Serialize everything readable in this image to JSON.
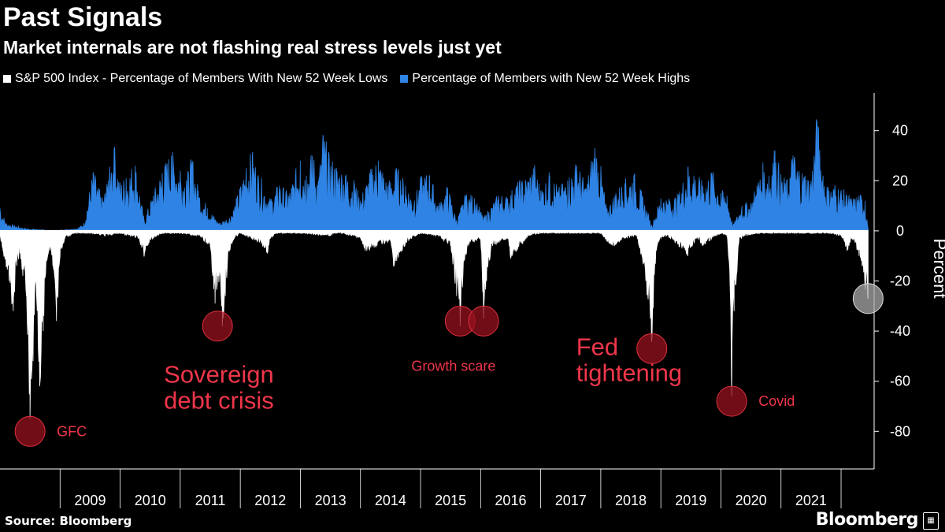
{
  "header": {
    "title": "Past Signals",
    "subtitle": "Market internals are not flashing real stress levels just yet"
  },
  "legend": [
    {
      "label": "S&P 500 Index - Percentage of Members With New 52 Week Lows",
      "color": "#ffffff"
    },
    {
      "label": "Percentage of Members with New 52 Week Highs",
      "color": "#2f83e4"
    }
  ],
  "footer": {
    "source": "Source: Bloomberg",
    "brand": "Bloomberg"
  },
  "chart_data": {
    "type": "area",
    "x_range": [
      "2008-01",
      "2022-06"
    ],
    "ylim": [
      -95,
      55
    ],
    "yticks": [
      40,
      20,
      0,
      -20,
      -40,
      -60,
      -80
    ],
    "ylabel": "Percent",
    "xtick_labels": [
      "2009",
      "2010",
      "2011",
      "2012",
      "2013",
      "2014",
      "2015",
      "2016",
      "2017",
      "2018",
      "2019",
      "2020",
      "2021"
    ],
    "series": [
      {
        "name": "S&P 500 Index - Percentage of Members With New 52 Week Lows",
        "color": "#ffffff",
        "x": [
          2008.0,
          2008.05,
          2008.15,
          2008.22,
          2008.28,
          2008.33,
          2008.38,
          2008.44,
          2008.5,
          2008.55,
          2008.6,
          2008.66,
          2008.72,
          2008.78,
          2008.83,
          2008.88,
          2008.94,
          2009.0,
          2009.08,
          2009.17,
          2009.25,
          2009.35,
          2009.5,
          2009.75,
          2010.0,
          2010.3,
          2010.4,
          2010.45,
          2010.55,
          2010.7,
          2011.0,
          2011.3,
          2011.5,
          2011.58,
          2011.63,
          2011.7,
          2011.75,
          2011.82,
          2011.9,
          2012.0,
          2012.35,
          2012.45,
          2012.5,
          2012.6,
          2013.0,
          2013.5,
          2013.55,
          2013.7,
          2014.0,
          2014.08,
          2014.5,
          2014.55,
          2014.8,
          2014.85,
          2015.0,
          2015.3,
          2015.5,
          2015.6,
          2015.66,
          2015.72,
          2015.8,
          2016.0,
          2016.05,
          2016.1,
          2016.2,
          2016.45,
          2016.5,
          2016.8,
          2017.0,
          2017.5,
          2018.0,
          2018.1,
          2018.2,
          2018.4,
          2018.6,
          2018.75,
          2018.85,
          2018.92,
          2019.0,
          2019.1,
          2019.35,
          2019.45,
          2019.6,
          2019.7,
          2019.8,
          2020.0,
          2020.1,
          2020.15,
          2020.18,
          2020.22,
          2020.3,
          2020.4,
          2020.6,
          2020.8,
          2021.0,
          2021.5,
          2021.8,
          2022.0,
          2022.1,
          2022.2,
          2022.3,
          2022.35,
          2022.4,
          2022.45
        ],
        "values": [
          -2,
          -8,
          -20,
          -32,
          -14,
          -9,
          -18,
          -26,
          -75,
          -52,
          -20,
          -62,
          -40,
          -12,
          -8,
          -14,
          -36,
          -10,
          -3,
          -2,
          -1,
          -1,
          -1,
          -2,
          -1,
          -3,
          -10,
          -6,
          -3,
          -1,
          -1,
          -2,
          -6,
          -29,
          -18,
          -38,
          -26,
          -8,
          -3,
          -1,
          -5,
          -9,
          -3,
          -1,
          -1,
          -2,
          -1,
          -1,
          -3,
          -8,
          -4,
          -14,
          -4,
          -3,
          -1,
          -2,
          -6,
          -26,
          -38,
          -12,
          -6,
          -3,
          -35,
          -20,
          -6,
          -3,
          -11,
          -2,
          -1,
          -1,
          -1,
          -4,
          -6,
          -3,
          -2,
          -20,
          -44,
          -8,
          -3,
          -2,
          -7,
          -10,
          -3,
          -6,
          -4,
          -1,
          -2,
          -20,
          -66,
          -32,
          -4,
          -2,
          -1,
          -1,
          -1,
          -1,
          -1,
          -2,
          -8,
          -3,
          -10,
          -14,
          -22,
          -27
        ]
      },
      {
        "name": "Percentage of Members with New 52 Week Highs",
        "color": "#2f83e4",
        "x": [
          2008.0,
          2008.1,
          2008.4,
          2008.9,
          2009.3,
          2009.4,
          2009.55,
          2009.7,
          2009.8,
          2009.9,
          2010.0,
          2010.1,
          2010.25,
          2010.4,
          2010.55,
          2010.7,
          2010.85,
          2011.0,
          2011.1,
          2011.2,
          2011.3,
          2011.45,
          2011.65,
          2011.85,
          2012.0,
          2012.1,
          2012.2,
          2012.3,
          2012.5,
          2012.65,
          2012.8,
          2013.0,
          2013.1,
          2013.2,
          2013.3,
          2013.38,
          2013.48,
          2013.6,
          2013.75,
          2013.9,
          2014.0,
          2014.15,
          2014.3,
          2014.45,
          2014.6,
          2014.75,
          2014.9,
          2015.0,
          2015.15,
          2015.3,
          2015.45,
          2015.6,
          2015.75,
          2015.9,
          2016.05,
          2016.3,
          2016.45,
          2016.6,
          2016.75,
          2016.9,
          2017.0,
          2017.15,
          2017.3,
          2017.45,
          2017.6,
          2017.75,
          2017.9,
          2018.0,
          2018.1,
          2018.25,
          2018.4,
          2018.55,
          2018.7,
          2018.85,
          2019.0,
          2019.15,
          2019.3,
          2019.45,
          2019.55,
          2019.7,
          2019.85,
          2020.0,
          2020.1,
          2020.2,
          2020.35,
          2020.5,
          2020.6,
          2020.7,
          2020.8,
          2020.9,
          2021.0,
          2021.1,
          2021.2,
          2021.3,
          2021.4,
          2021.5,
          2021.6,
          2021.7,
          2021.8,
          2021.9,
          2022.0,
          2022.1,
          2022.2,
          2022.3,
          2022.4,
          2022.45
        ],
        "values": [
          9,
          3,
          1,
          0,
          1,
          3,
          23,
          12,
          20,
          33,
          18,
          21,
          26,
          4,
          14,
          23,
          30,
          24,
          20,
          28,
          16,
          9,
          3,
          6,
          17,
          25,
          30,
          22,
          12,
          18,
          14,
          28,
          22,
          30,
          20,
          38,
          28,
          25,
          22,
          19,
          12,
          22,
          28,
          18,
          24,
          18,
          12,
          20,
          22,
          10,
          17,
          4,
          14,
          13,
          5,
          14,
          13,
          18,
          20,
          25,
          16,
          22,
          16,
          20,
          26,
          17,
          33,
          24,
          8,
          15,
          19,
          22,
          13,
          2,
          13,
          12,
          14,
          25,
          22,
          18,
          23,
          15,
          14,
          2,
          10,
          11,
          18,
          25,
          22,
          32,
          21,
          19,
          30,
          24,
          22,
          20,
          44,
          22,
          16,
          18,
          16,
          14,
          12,
          14,
          12,
          1
        ]
      }
    ],
    "annotations": [
      {
        "text": "GFC",
        "x": 2008.5,
        "y": -80,
        "style": "small"
      },
      {
        "text": "Sovereign debt crisis",
        "lines": [
          "Sovereign",
          "debt crisis"
        ],
        "x": 2011.62,
        "y": -38,
        "style": "large"
      },
      {
        "text": "Growth scare",
        "x": 2015.66,
        "y": -36,
        "style": "small"
      },
      {
        "text": "Growth scare marker 2",
        "x": 2016.05,
        "y": -36,
        "style": "marker-only"
      },
      {
        "text": "Fed tightening",
        "lines": [
          "Fed",
          "tightening"
        ],
        "x": 2018.85,
        "y": -47,
        "style": "large"
      },
      {
        "text": "Covid",
        "x": 2020.18,
        "y": -68,
        "style": "small"
      },
      {
        "text": "",
        "x": 2022.45,
        "y": -27,
        "style": "current"
      }
    ]
  }
}
